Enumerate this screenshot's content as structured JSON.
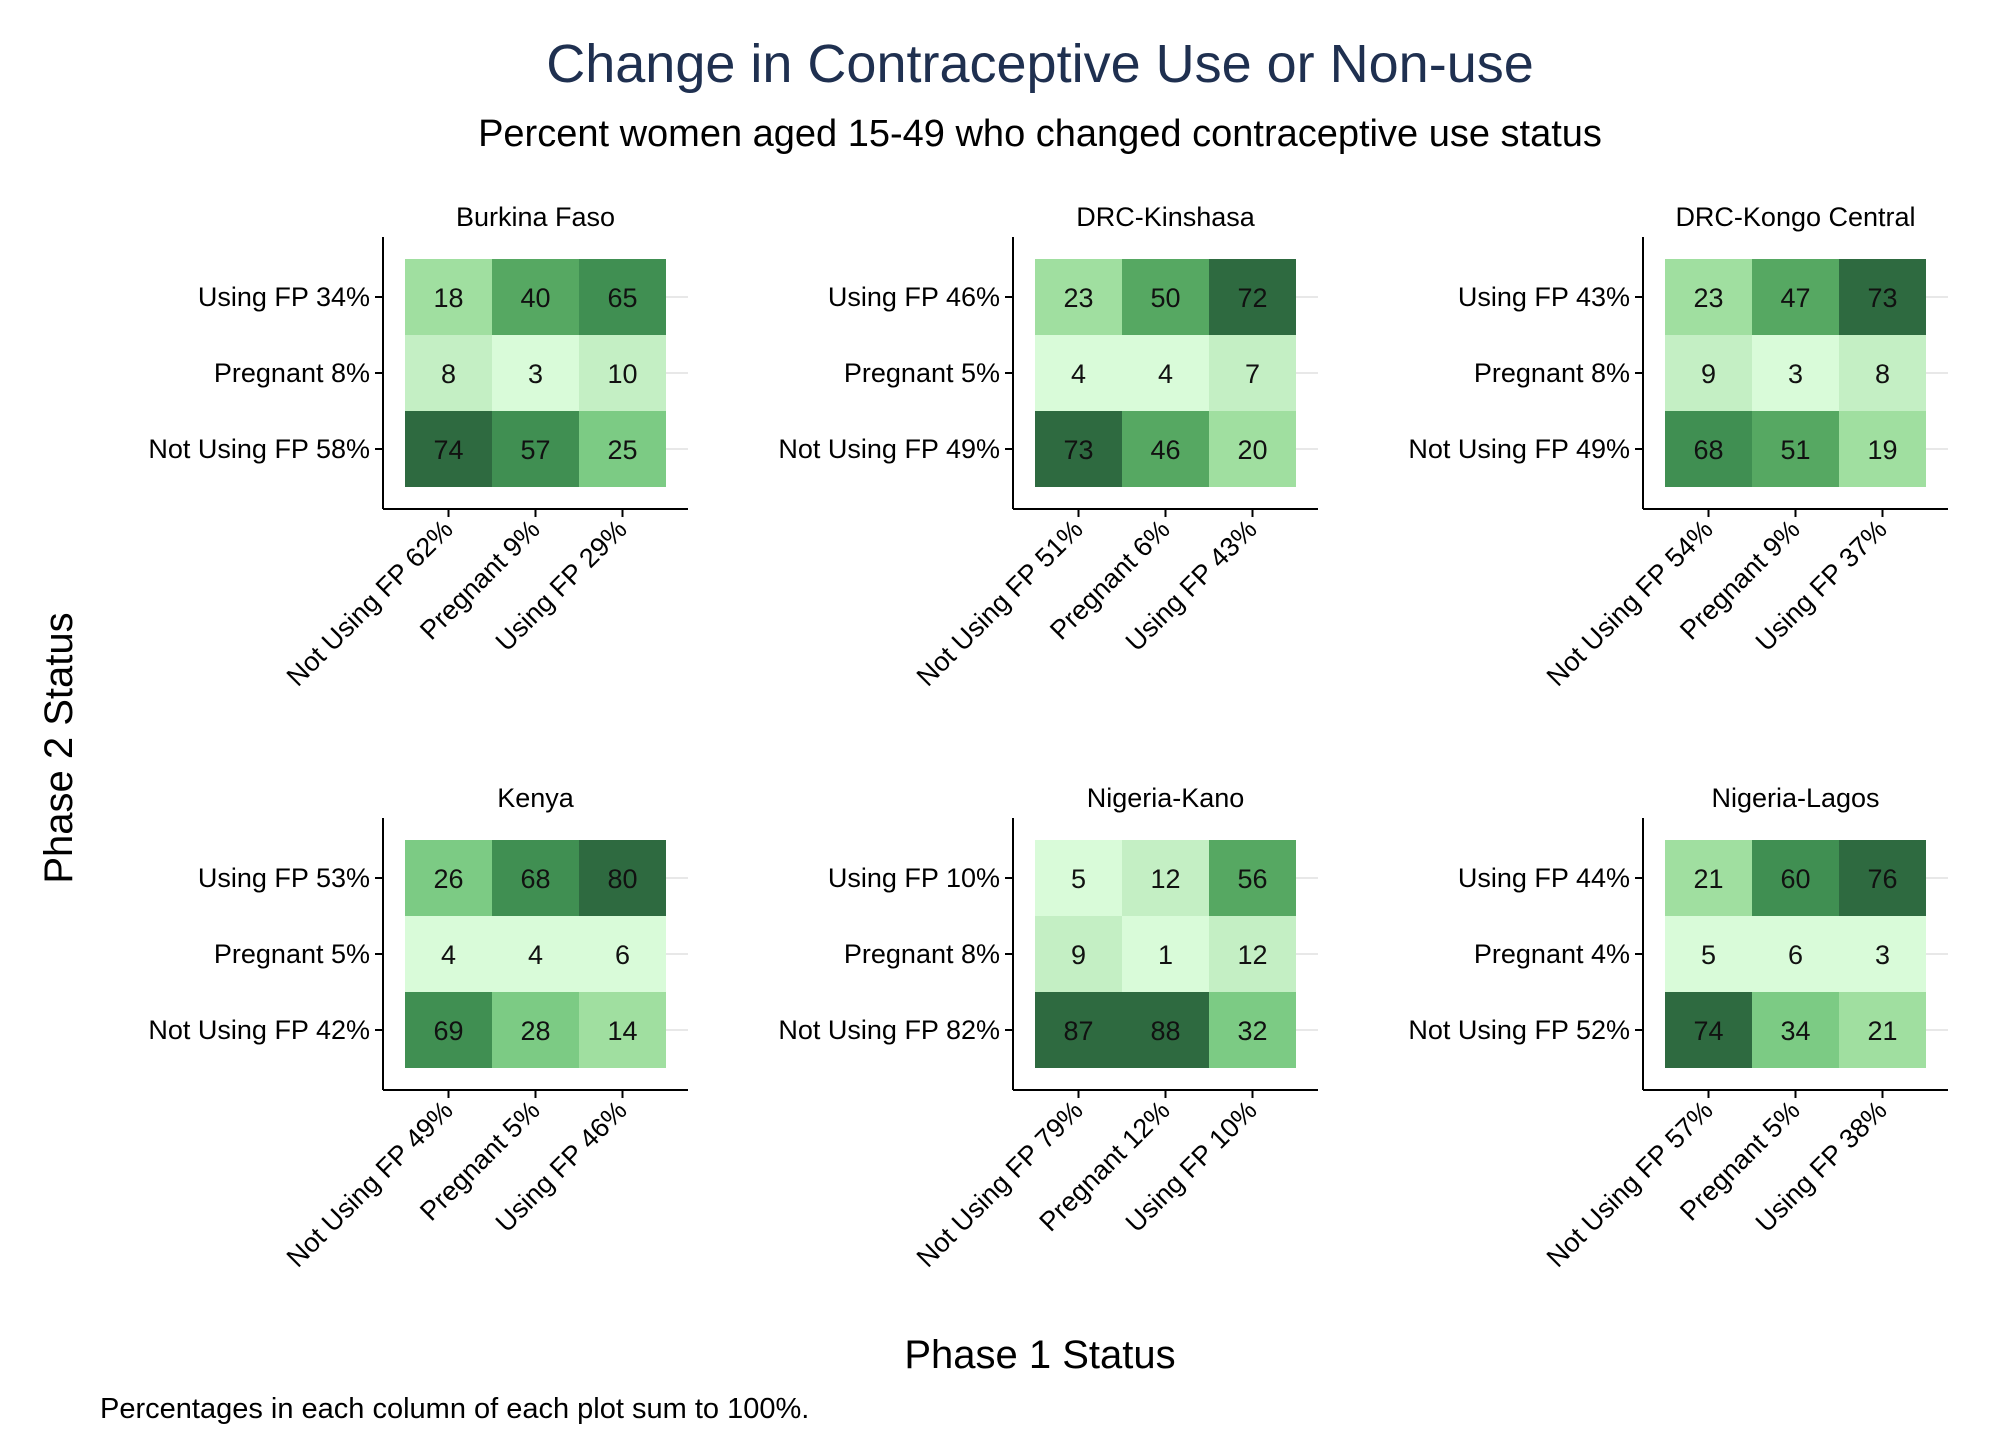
{
  "colors": {
    "title": "#1f3050",
    "text": "#000000",
    "axis": "#000000",
    "gridline": "#e8e8e8",
    "scale": [
      "#d9fbd9",
      "#c4efc4",
      "#a0dfa0",
      "#7ccb84",
      "#56a862",
      "#408f52",
      "#2e6a40"
    ]
  },
  "chart_data": {
    "type": "heatmap",
    "title": "Change in Contraceptive Use or Non-use",
    "subtitle": "Percent women aged 15-49 who changed contraceptive use status",
    "xlabel": "Phase 1 Status",
    "ylabel": "Phase 2 Status",
    "note": "Percentages in each column of each plot sum to 100%.",
    "panels": [
      {
        "name": "Burkina Faso",
        "x_categories": [
          "Not Using FP 62%",
          "Pregnant 9%",
          "Using FP 29%"
        ],
        "y_categories": [
          "Using FP 34%",
          "Pregnant 8%",
          "Not Using FP 58%"
        ],
        "values": [
          [
            18,
            40,
            65
          ],
          [
            8,
            3,
            10
          ],
          [
            74,
            57,
            25
          ]
        ]
      },
      {
        "name": "DRC-Kinshasa",
        "x_categories": [
          "Not Using FP 51%",
          "Pregnant 6%",
          "Using FP 43%"
        ],
        "y_categories": [
          "Using FP 46%",
          "Pregnant 5%",
          "Not Using FP 49%"
        ],
        "values": [
          [
            23,
            50,
            72
          ],
          [
            4,
            4,
            7
          ],
          [
            73,
            46,
            20
          ]
        ]
      },
      {
        "name": "DRC-Kongo Central",
        "x_categories": [
          "Not Using FP 54%",
          "Pregnant 9%",
          "Using FP 37%"
        ],
        "y_categories": [
          "Using FP 43%",
          "Pregnant 8%",
          "Not Using FP 49%"
        ],
        "values": [
          [
            23,
            47,
            73
          ],
          [
            9,
            3,
            8
          ],
          [
            68,
            51,
            19
          ]
        ]
      },
      {
        "name": "Kenya",
        "x_categories": [
          "Not Using FP 49%",
          "Pregnant 5%",
          "Using FP 46%"
        ],
        "y_categories": [
          "Using FP 53%",
          "Pregnant 5%",
          "Not Using FP 42%"
        ],
        "values": [
          [
            26,
            68,
            80
          ],
          [
            4,
            4,
            6
          ],
          [
            69,
            28,
            14
          ]
        ]
      },
      {
        "name": "Nigeria-Kano",
        "x_categories": [
          "Not Using FP 79%",
          "Pregnant 12%",
          "Using FP 10%"
        ],
        "y_categories": [
          "Using FP 10%",
          "Pregnant 8%",
          "Not Using FP 82%"
        ],
        "values": [
          [
            5,
            12,
            56
          ],
          [
            9,
            1,
            12
          ],
          [
            87,
            88,
            32
          ]
        ]
      },
      {
        "name": "Nigeria-Lagos",
        "x_categories": [
          "Not Using FP 57%",
          "Pregnant 5%",
          "Using FP 38%"
        ],
        "y_categories": [
          "Using FP 44%",
          "Pregnant 4%",
          "Not Using FP 52%"
        ],
        "values": [
          [
            21,
            60,
            76
          ],
          [
            5,
            6,
            3
          ],
          [
            74,
            34,
            21
          ]
        ]
      }
    ]
  }
}
